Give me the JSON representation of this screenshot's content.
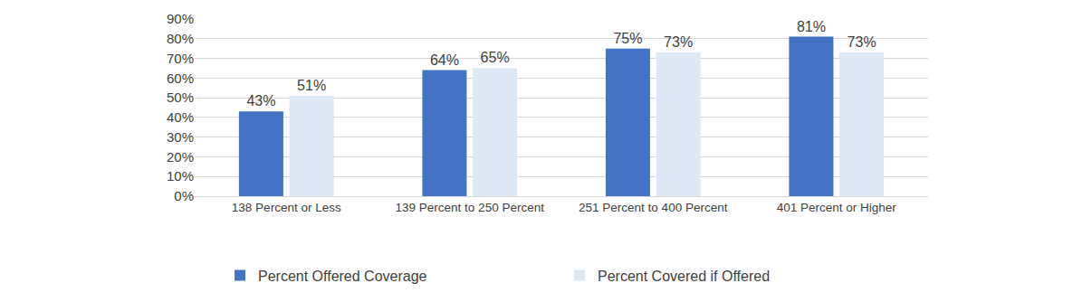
{
  "chart_data": {
    "type": "bar",
    "categories": [
      "138 Percent or Less",
      "139 Percent to 250 Percent",
      "251 Percent to 400 Percent",
      "401 Percent or Higher"
    ],
    "series": [
      {
        "name": "Percent Offered Coverage",
        "color": "#4472c4",
        "values": [
          43,
          64,
          75,
          81
        ],
        "value_labels": [
          "43%",
          "64%",
          "75%",
          "81%"
        ]
      },
      {
        "name": "Percent Covered if Offered",
        "color": "#dde8f5",
        "values": [
          51,
          65,
          73,
          73
        ],
        "value_labels": [
          "51%",
          "65%",
          "73%",
          "73%"
        ]
      }
    ],
    "ylim": [
      0,
      90
    ],
    "yticks": [
      {
        "value": 0,
        "label": "0%"
      },
      {
        "value": 10,
        "label": "10%"
      },
      {
        "value": 20,
        "label": "20%"
      },
      {
        "value": 30,
        "label": "30%"
      },
      {
        "value": 40,
        "label": "40%"
      },
      {
        "value": 50,
        "label": "50%"
      },
      {
        "value": 60,
        "label": "60%"
      },
      {
        "value": 70,
        "label": "70%"
      },
      {
        "value": 80,
        "label": "80%"
      },
      {
        "value": 90,
        "label": "90%"
      }
    ],
    "grid": true,
    "data_labels": true,
    "legend": "bottom"
  }
}
